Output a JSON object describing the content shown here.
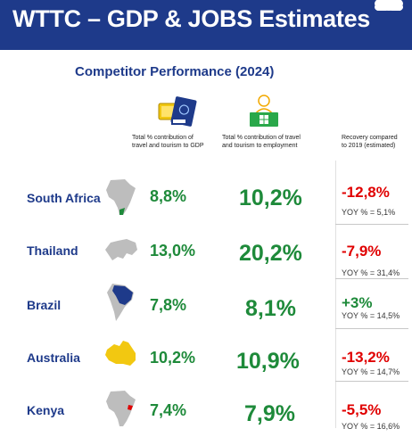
{
  "header": {
    "title": "WTTC – GDP & JOBS Estimates"
  },
  "subtitle": "Competitor Performance (2024)",
  "columns": {
    "gdp_line1": "Total % contribution of",
    "gdp_line2": "travel and tourism to GDP",
    "emp_line1": "Total % contribution of travel",
    "emp_line2": "and tourism to employment",
    "rec_line1": "Recovery compared",
    "rec_line2": "to 2019 (estimated)"
  },
  "colors": {
    "banner": "#1e3a8a",
    "positive": "#1e8a3a",
    "negative": "#e00000",
    "map_highlight_brazil": "#1e3a8a",
    "map_highlight_australia": "#f2c811"
  },
  "rows": [
    {
      "country": "South Africa",
      "gdp": "8,8%",
      "employment": "10,2%",
      "recovery": "-12,8%",
      "recovery_trend": "negative",
      "yoy": "YOY % = 5,1%",
      "map_icon": "africa-map-icon"
    },
    {
      "country": "Thailand",
      "gdp": "13,0%",
      "employment": "20,2%",
      "recovery": "-7,9%",
      "recovery_trend": "negative",
      "yoy": "YOY % = 31,4%",
      "map_icon": "asia-map-icon"
    },
    {
      "country": "Brazil",
      "gdp": "7,8%",
      "employment": "8,1%",
      "recovery": "+3%",
      "recovery_trend": "positive",
      "yoy": "YOY % = 14,5%",
      "map_icon": "south-america-map-icon"
    },
    {
      "country": "Australia",
      "gdp": "10,2%",
      "employment": "10,9%",
      "recovery": "-13,2%",
      "recovery_trend": "negative",
      "yoy": "YOY % =  14,7%",
      "map_icon": "australia-map-icon"
    },
    {
      "country": "Kenya",
      "gdp": "7,4%",
      "employment": "7,9%",
      "recovery": "-5,5%",
      "recovery_trend": "negative",
      "yoy": "YOY % = 16,6%",
      "map_icon": "africa-map-icon"
    }
  ]
}
